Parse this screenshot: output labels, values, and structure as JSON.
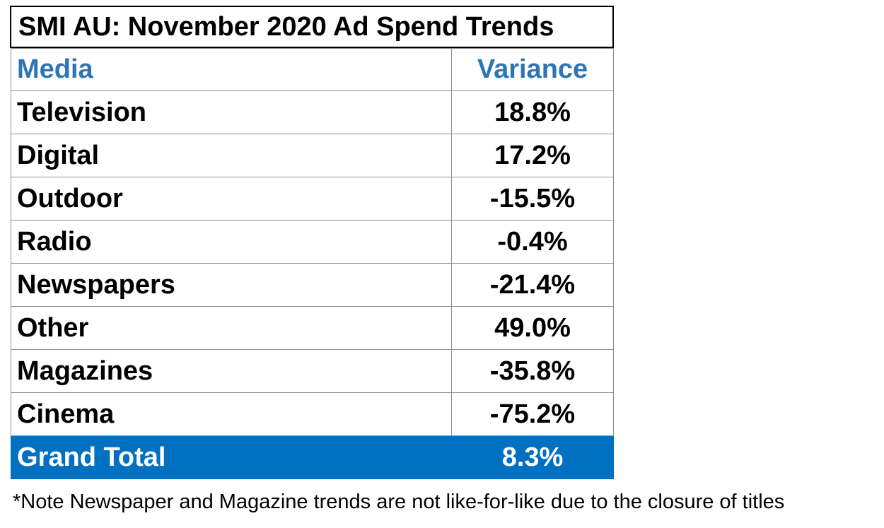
{
  "chart_data": {
    "type": "table",
    "title": "SMI AU: November 2020 Ad Spend Trends",
    "columns": [
      "Media",
      "Variance"
    ],
    "rows": [
      {
        "media": "Television",
        "variance": "18.8%"
      },
      {
        "media": "Digital",
        "variance": "17.2%"
      },
      {
        "media": "Outdoor",
        "variance": "-15.5%"
      },
      {
        "media": "Radio",
        "variance": "-0.4%"
      },
      {
        "media": "Newspapers",
        "variance": "-21.4%"
      },
      {
        "media": "Other",
        "variance": "49.0%"
      },
      {
        "media": "Magazines",
        "variance": "-35.8%"
      },
      {
        "media": "Cinema",
        "variance": "-75.2%"
      }
    ],
    "values": [
      18.8,
      17.2,
      -15.5,
      -0.4,
      -21.4,
      49.0,
      -35.8,
      -75.2
    ],
    "total": {
      "label": "Grand Total",
      "variance": "8.3%"
    },
    "note": "*Note Newspaper and Magazine trends are not like-for-like due to the closure of titles"
  },
  "colors": {
    "header_text": "#2e75b6",
    "total_background": "#0070c0",
    "total_text": "#ffffff",
    "grid_line": "#8c8c8c"
  }
}
